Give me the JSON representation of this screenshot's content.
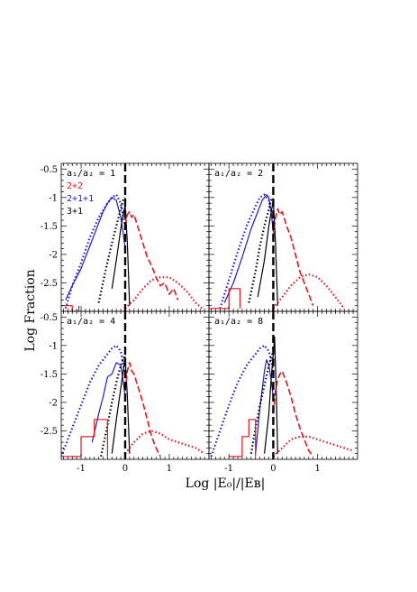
{
  "chart_data": {
    "type": "line",
    "xlabel": "Log |E₀|/|Eʙ|",
    "ylabel": "Log Fraction",
    "xlim": [
      -1.45,
      1.9
    ],
    "ylim": [
      -3.0,
      -0.4
    ],
    "x_ticks": [
      "-1",
      "0",
      "1"
    ],
    "y_ticks": [
      "-0.5",
      "-1",
      "-1.5",
      "-2",
      "-2.5"
    ],
    "vline_x": 0,
    "legend": [
      {
        "label": "2+2",
        "color": "#e8131b"
      },
      {
        "label": "2+1+1",
        "color": "#1c1ccc"
      },
      {
        "label": "3+1",
        "color": "#000000"
      }
    ],
    "colors": {
      "red": "#e8131b",
      "blue": "#1c1ccc",
      "black": "#000000"
    },
    "panels": [
      {
        "title": "a₁/a₂ = 1",
        "series": [
          {
            "color": "blue",
            "style": "solid",
            "x": [
              -1.35,
              -1.2,
              -1.0,
              -0.8,
              -0.6,
              -0.5,
              -0.4,
              -0.3,
              -0.2,
              -0.15,
              -0.1,
              -0.05,
              0.0
            ],
            "y": [
              -2.8,
              -2.55,
              -2.25,
              -1.85,
              -1.45,
              -1.25,
              -1.1,
              -1.0,
              -1.05,
              -1.2,
              -1.35,
              -1.6,
              -1.9
            ]
          },
          {
            "color": "blue",
            "style": "dotted",
            "x": [
              -1.35,
              -1.2,
              -1.0,
              -0.8,
              -0.6,
              -0.4,
              -0.3,
              -0.2,
              -0.1,
              0.0
            ],
            "y": [
              -2.95,
              -2.55,
              -2.15,
              -1.7,
              -1.35,
              -1.1,
              -1.0,
              -0.95,
              -1.1,
              -1.5
            ]
          },
          {
            "color": "black",
            "style": "dotted",
            "x": [
              -0.6,
              -0.45,
              -0.3,
              -0.2,
              -0.1,
              -0.05,
              0.0
            ],
            "y": [
              -2.85,
              -2.3,
              -1.8,
              -1.5,
              -1.2,
              -1.05,
              -1.0
            ]
          },
          {
            "color": "black",
            "style": "solid",
            "x": [
              -0.3,
              -0.2,
              -0.1,
              -0.05,
              0.0,
              0.05,
              0.1
            ],
            "y": [
              -2.6,
              -2.1,
              -1.55,
              -1.3,
              -1.15,
              -1.8,
              -2.9
            ]
          },
          {
            "color": "red",
            "style": "dashed",
            "x": [
              0.0,
              0.05,
              0.1,
              0.15,
              0.2,
              0.3,
              0.4,
              0.5,
              0.6,
              0.7,
              0.8,
              0.9,
              1.0,
              1.1,
              1.2
            ],
            "y": [
              -1.5,
              -1.3,
              -1.25,
              -1.35,
              -1.3,
              -1.55,
              -1.8,
              -2.05,
              -2.2,
              -2.4,
              -2.55,
              -2.5,
              -2.7,
              -2.6,
              -2.8
            ]
          },
          {
            "color": "red",
            "style": "dotted",
            "x": [
              0.0,
              0.2,
              0.4,
              0.6,
              0.8,
              1.0,
              1.2,
              1.4,
              1.6,
              1.75
            ],
            "y": [
              -2.95,
              -2.8,
              -2.6,
              -2.45,
              -2.4,
              -2.4,
              -2.5,
              -2.65,
              -2.85,
              -2.95
            ]
          },
          {
            "color": "red",
            "style": "solid",
            "x": [
              -1.45,
              -1.2,
              -1.2,
              -1.05,
              -1.05
            ],
            "y": [
              -2.9,
              -2.9,
              -3.0,
              -3.0,
              -2.9
            ]
          }
        ]
      },
      {
        "title": "a₁/a₂ = 2",
        "series": [
          {
            "color": "blue",
            "style": "solid",
            "x": [
              -1.1,
              -0.9,
              -0.7,
              -0.5,
              -0.35,
              -0.25,
              -0.15,
              -0.1,
              -0.05,
              0.0
            ],
            "y": [
              -2.85,
              -2.5,
              -2.05,
              -1.55,
              -1.25,
              -1.05,
              -0.95,
              -1.0,
              -1.25,
              -1.6
            ]
          },
          {
            "color": "blue",
            "style": "dotted",
            "x": [
              -1.2,
              -1.0,
              -0.8,
              -0.6,
              -0.4,
              -0.3,
              -0.2,
              -0.1,
              0.0
            ],
            "y": [
              -2.95,
              -2.45,
              -1.95,
              -1.5,
              -1.15,
              -1.0,
              -0.95,
              -1.05,
              -1.45
            ]
          },
          {
            "color": "black",
            "style": "dotted",
            "x": [
              -0.55,
              -0.4,
              -0.3,
              -0.2,
              -0.1,
              -0.05,
              0.0
            ],
            "y": [
              -2.85,
              -2.3,
              -1.85,
              -1.5,
              -1.2,
              -1.05,
              -1.0
            ]
          },
          {
            "color": "black",
            "style": "solid",
            "x": [
              -0.35,
              -0.2,
              -0.1,
              0.0,
              0.05,
              0.1
            ],
            "y": [
              -2.75,
              -2.1,
              -1.5,
              -1.05,
              -1.8,
              -2.9
            ]
          },
          {
            "color": "red",
            "style": "dashed",
            "x": [
              0.0,
              0.05,
              0.1,
              0.15,
              0.2,
              0.3,
              0.4,
              0.5,
              0.6,
              0.7,
              0.8,
              0.9
            ],
            "y": [
              -1.7,
              -1.35,
              -1.2,
              -1.3,
              -1.25,
              -1.5,
              -1.7,
              -2.0,
              -2.3,
              -2.5,
              -2.7,
              -2.9
            ]
          },
          {
            "color": "red",
            "style": "dotted",
            "x": [
              0.0,
              0.2,
              0.4,
              0.6,
              0.8,
              1.0,
              1.2,
              1.4,
              1.6
            ],
            "y": [
              -2.95,
              -2.75,
              -2.55,
              -2.4,
              -2.35,
              -2.4,
              -2.55,
              -2.75,
              -2.95
            ]
          },
          {
            "color": "red",
            "style": "solid",
            "x": [
              -1.45,
              -1.0,
              -1.0,
              -0.75,
              -0.75
            ],
            "y": [
              -2.95,
              -2.95,
              -2.6,
              -2.6,
              -2.95
            ]
          }
        ]
      },
      {
        "title": "a₁/a₂ = 4",
        "series": [
          {
            "color": "blue",
            "style": "solid",
            "x": [
              -0.75,
              -0.6,
              -0.5,
              -0.4,
              -0.3,
              -0.2,
              -0.1,
              -0.05,
              0.0
            ],
            "y": [
              -2.7,
              -2.2,
              -1.9,
              -1.55,
              -1.5,
              -1.3,
              -1.35,
              -1.6,
              -1.9
            ]
          },
          {
            "color": "blue",
            "style": "dotted",
            "x": [
              -1.45,
              -1.2,
              -1.0,
              -0.8,
              -0.6,
              -0.4,
              -0.3,
              -0.2,
              -0.1,
              0.0
            ],
            "y": [
              -2.95,
              -2.45,
              -2.05,
              -1.65,
              -1.35,
              -1.15,
              -1.05,
              -1.0,
              -1.1,
              -1.5
            ]
          },
          {
            "color": "black",
            "style": "dotted",
            "x": [
              -0.55,
              -0.4,
              -0.3,
              -0.2,
              -0.1,
              0.0
            ],
            "y": [
              -2.95,
              -2.4,
              -2.0,
              -1.65,
              -1.35,
              -1.15
            ]
          },
          {
            "color": "black",
            "style": "solid",
            "x": [
              -0.3,
              -0.2,
              -0.1,
              0.0,
              0.05,
              0.1
            ],
            "y": [
              -2.9,
              -2.3,
              -1.75,
              -1.2,
              -1.9,
              -2.9
            ]
          },
          {
            "color": "red",
            "style": "dashed",
            "x": [
              0.0,
              0.05,
              0.1,
              0.15,
              0.2,
              0.3,
              0.4,
              0.5,
              0.6,
              0.7,
              0.8
            ],
            "y": [
              -1.8,
              -1.45,
              -1.3,
              -1.45,
              -1.5,
              -1.75,
              -2.0,
              -2.3,
              -2.6,
              -2.8,
              -2.95
            ]
          },
          {
            "color": "red",
            "style": "dotted",
            "x": [
              0.0,
              0.2,
              0.4,
              0.6,
              0.8,
              1.0,
              1.2,
              1.4,
              1.6,
              1.8
            ],
            "y": [
              -2.9,
              -2.7,
              -2.55,
              -2.5,
              -2.55,
              -2.65,
              -2.7,
              -2.75,
              -2.8,
              -2.9
            ]
          },
          {
            "color": "red",
            "style": "solid",
            "x": [
              -1.45,
              -1.0,
              -1.0,
              -0.7,
              -0.7,
              -0.4,
              -0.4
            ],
            "y": [
              -2.95,
              -2.95,
              -2.6,
              -2.6,
              -2.3,
              -2.3,
              -2.95
            ]
          }
        ]
      },
      {
        "title": "a₁/a₂ = 8",
        "series": [
          {
            "color": "blue",
            "style": "solid",
            "x": [
              -0.4,
              -0.3,
              -0.2,
              -0.15,
              -0.1,
              -0.05,
              0.0
            ],
            "y": [
              -2.9,
              -2.1,
              -1.45,
              -1.25,
              -1.35,
              -1.6,
              -1.9
            ]
          },
          {
            "color": "blue",
            "style": "dotted",
            "x": [
              -1.4,
              -1.2,
              -1.0,
              -0.8,
              -0.6,
              -0.4,
              -0.3,
              -0.2,
              -0.1,
              0.0
            ],
            "y": [
              -2.95,
              -2.5,
              -2.05,
              -1.65,
              -1.35,
              -1.15,
              -1.05,
              -1.0,
              -1.1,
              -1.45
            ]
          },
          {
            "color": "black",
            "style": "dotted",
            "x": [
              -0.5,
              -0.4,
              -0.3,
              -0.2,
              -0.1,
              0.0
            ],
            "y": [
              -2.9,
              -2.45,
              -2.05,
              -1.7,
              -1.35,
              -1.1
            ]
          },
          {
            "color": "black",
            "style": "solid",
            "x": [
              -0.2,
              -0.1,
              -0.05,
              0.0,
              0.03,
              0.07,
              0.1
            ],
            "y": [
              -2.9,
              -2.2,
              -1.6,
              -1.15,
              -0.85,
              -1.9,
              -2.9
            ]
          },
          {
            "color": "red",
            "style": "dashed",
            "x": [
              0.0,
              0.05,
              0.1,
              0.15,
              0.2,
              0.3,
              0.4,
              0.5,
              0.6,
              0.7,
              0.8,
              0.9
            ],
            "y": [
              -2.2,
              -1.8,
              -1.6,
              -1.5,
              -1.45,
              -1.65,
              -1.9,
              -2.2,
              -2.45,
              -2.65,
              -2.85,
              -2.95
            ]
          },
          {
            "color": "red",
            "style": "dotted",
            "x": [
              0.0,
              0.2,
              0.4,
              0.6,
              0.8,
              1.0,
              1.2,
              1.4,
              1.6,
              1.8
            ],
            "y": [
              -2.95,
              -2.8,
              -2.65,
              -2.6,
              -2.6,
              -2.65,
              -2.7,
              -2.75,
              -2.8,
              -2.85
            ]
          },
          {
            "color": "red",
            "style": "solid",
            "x": [
              -1.0,
              -0.7,
              -0.7,
              -0.55,
              -0.55,
              -0.4,
              -0.4
            ],
            "y": [
              -2.95,
              -2.95,
              -2.6,
              -2.6,
              -2.3,
              -2.3,
              -2.95
            ]
          }
        ]
      }
    ]
  }
}
